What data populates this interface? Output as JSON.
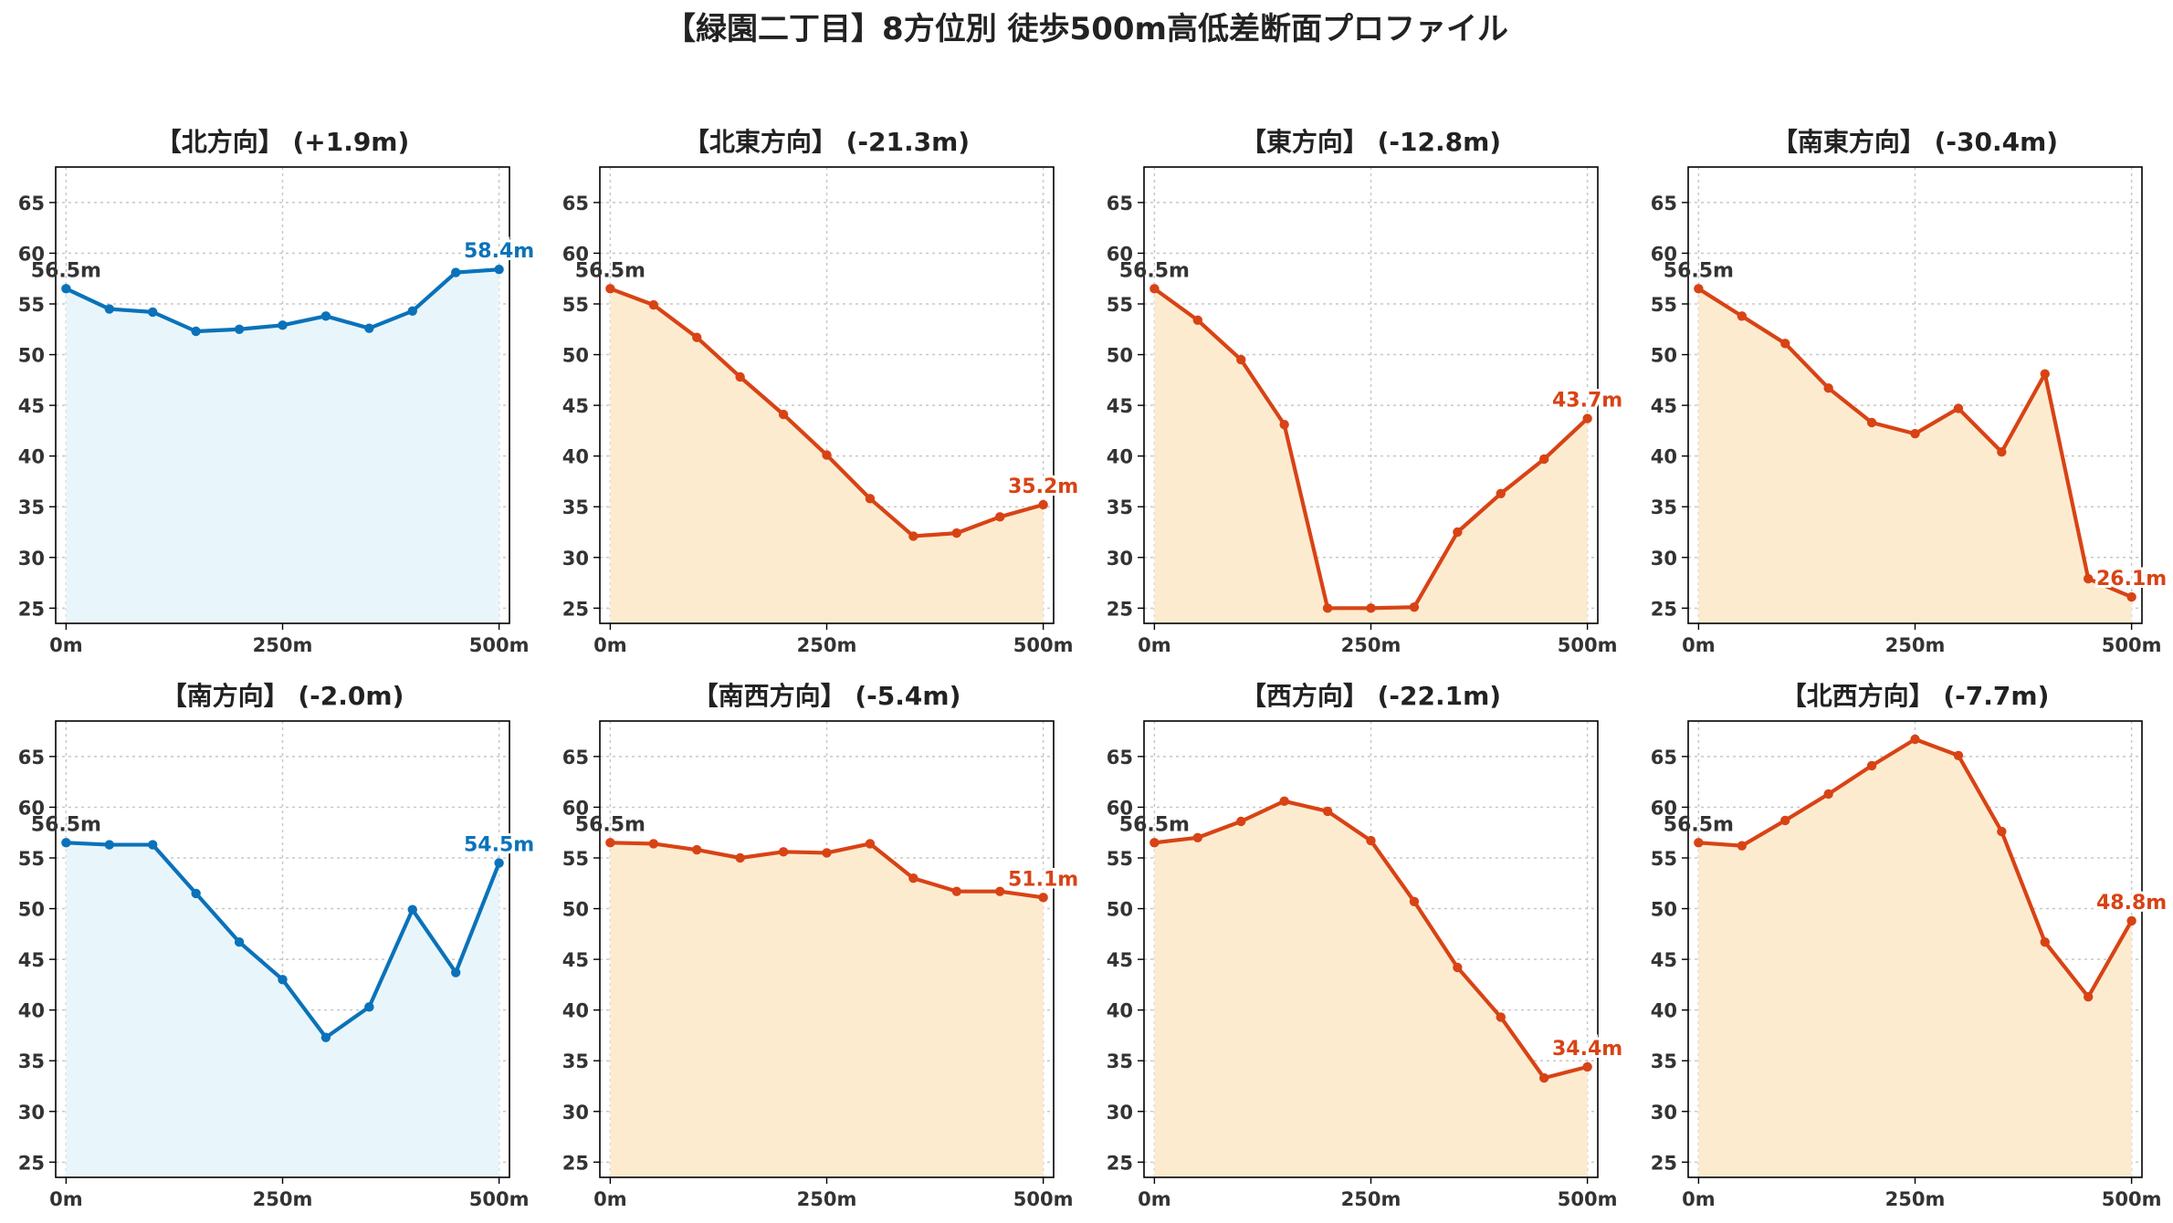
{
  "figure": {
    "title": "【緑園二丁目】8方位別 徒歩500m高低差断面プロファイル"
  },
  "colors": {
    "ascent_line": "#0a72b9",
    "ascent_fill": "#e8f6fb",
    "descent_line": "#d84315",
    "descent_fill": "#fdebd0",
    "start_label": "#333333"
  },
  "chart_data": [
    {
      "type": "area",
      "title": "【北方向】 (+1.9m)",
      "trend": "ascent",
      "x": [
        0,
        50,
        100,
        150,
        200,
        250,
        300,
        350,
        400,
        450,
        500
      ],
      "y": [
        56.5,
        54.5,
        54.2,
        52.3,
        52.5,
        52.9,
        53.8,
        52.6,
        54.3,
        58.1,
        58.4
      ],
      "xlim": [
        -12,
        512
      ],
      "ylim": [
        23.5,
        68.5
      ],
      "xticks": [
        "0m",
        "250m",
        "500m"
      ],
      "yticks": [
        "25",
        "30",
        "35",
        "40",
        "45",
        "50",
        "55",
        "60",
        "65"
      ],
      "start_label": "56.5m",
      "end_label": "58.4m",
      "grid": true
    },
    {
      "type": "area",
      "title": "【北東方向】 (-21.3m)",
      "trend": "descent",
      "x": [
        0,
        50,
        100,
        150,
        200,
        250,
        300,
        350,
        400,
        450,
        500
      ],
      "y": [
        56.5,
        54.9,
        51.7,
        47.8,
        44.1,
        40.1,
        35.8,
        32.1,
        32.4,
        34.0,
        35.2
      ],
      "xlim": [
        -12,
        512
      ],
      "ylim": [
        23.5,
        68.5
      ],
      "xticks": [
        "0m",
        "250m",
        "500m"
      ],
      "yticks": [
        "25",
        "30",
        "35",
        "40",
        "45",
        "50",
        "55",
        "60",
        "65"
      ],
      "start_label": "56.5m",
      "end_label": "35.2m",
      "grid": true
    },
    {
      "type": "area",
      "title": "【東方向】 (-12.8m)",
      "trend": "descent",
      "x": [
        0,
        50,
        100,
        150,
        200,
        250,
        300,
        350,
        400,
        450,
        500
      ],
      "y": [
        56.5,
        53.4,
        49.5,
        43.1,
        25.0,
        25.0,
        25.1,
        32.5,
        36.3,
        39.7,
        43.7
      ],
      "xlim": [
        -12,
        512
      ],
      "ylim": [
        23.5,
        68.5
      ],
      "xticks": [
        "0m",
        "250m",
        "500m"
      ],
      "yticks": [
        "25",
        "30",
        "35",
        "40",
        "45",
        "50",
        "55",
        "60",
        "65"
      ],
      "start_label": "56.5m",
      "end_label": "43.7m",
      "grid": true
    },
    {
      "type": "area",
      "title": "【南東方向】 (-30.4m)",
      "trend": "descent",
      "x": [
        0,
        50,
        100,
        150,
        200,
        250,
        300,
        350,
        400,
        450,
        500
      ],
      "y": [
        56.5,
        53.8,
        51.1,
        46.7,
        43.3,
        42.2,
        44.7,
        40.4,
        48.1,
        27.9,
        26.1
      ],
      "xlim": [
        -12,
        512
      ],
      "ylim": [
        23.5,
        68.5
      ],
      "xticks": [
        "0m",
        "250m",
        "500m"
      ],
      "yticks": [
        "25",
        "30",
        "35",
        "40",
        "45",
        "50",
        "55",
        "60",
        "65"
      ],
      "start_label": "56.5m",
      "end_label": "26.1m",
      "grid": true
    },
    {
      "type": "area",
      "title": "【南方向】 (-2.0m)",
      "trend": "ascent",
      "x": [
        0,
        50,
        100,
        150,
        200,
        250,
        300,
        350,
        400,
        450,
        500
      ],
      "y": [
        56.5,
        56.3,
        56.3,
        51.5,
        46.7,
        43.0,
        37.3,
        40.3,
        49.9,
        43.7,
        54.5
      ],
      "xlim": [
        -12,
        512
      ],
      "ylim": [
        23.5,
        68.5
      ],
      "xticks": [
        "0m",
        "250m",
        "500m"
      ],
      "yticks": [
        "25",
        "30",
        "35",
        "40",
        "45",
        "50",
        "55",
        "60",
        "65"
      ],
      "start_label": "56.5m",
      "end_label": "54.5m",
      "grid": true
    },
    {
      "type": "area",
      "title": "【南西方向】 (-5.4m)",
      "trend": "descent",
      "x": [
        0,
        50,
        100,
        150,
        200,
        250,
        300,
        350,
        400,
        450,
        500
      ],
      "y": [
        56.5,
        56.4,
        55.8,
        55.0,
        55.6,
        55.5,
        56.4,
        53.0,
        51.7,
        51.7,
        51.1
      ],
      "xlim": [
        -12,
        512
      ],
      "ylim": [
        23.5,
        68.5
      ],
      "xticks": [
        "0m",
        "250m",
        "500m"
      ],
      "yticks": [
        "25",
        "30",
        "35",
        "40",
        "45",
        "50",
        "55",
        "60",
        "65"
      ],
      "start_label": "56.5m",
      "end_label": "51.1m",
      "grid": true
    },
    {
      "type": "area",
      "title": "【西方向】 (-22.1m)",
      "trend": "descent",
      "x": [
        0,
        50,
        100,
        150,
        200,
        250,
        300,
        350,
        400,
        450,
        500
      ],
      "y": [
        56.5,
        57.0,
        58.6,
        60.6,
        59.6,
        56.7,
        50.7,
        44.2,
        39.3,
        33.3,
        34.4
      ],
      "xlim": [
        -12,
        512
      ],
      "ylim": [
        23.5,
        68.5
      ],
      "xticks": [
        "0m",
        "250m",
        "500m"
      ],
      "yticks": [
        "25",
        "30",
        "35",
        "40",
        "45",
        "50",
        "55",
        "60",
        "65"
      ],
      "start_label": "56.5m",
      "end_label": "34.4m",
      "grid": true
    },
    {
      "type": "area",
      "title": "【北西方向】 (-7.7m)",
      "trend": "descent",
      "x": [
        0,
        50,
        100,
        150,
        200,
        250,
        300,
        350,
        400,
        450,
        500
      ],
      "y": [
        56.5,
        56.2,
        58.7,
        61.3,
        64.1,
        66.7,
        65.1,
        57.6,
        46.7,
        41.3,
        48.8
      ],
      "xlim": [
        -12,
        512
      ],
      "ylim": [
        23.5,
        68.5
      ],
      "xticks": [
        "0m",
        "250m",
        "500m"
      ],
      "yticks": [
        "25",
        "30",
        "35",
        "40",
        "45",
        "50",
        "55",
        "60",
        "65"
      ],
      "start_label": "56.5m",
      "end_label": "48.8m",
      "grid": true
    }
  ]
}
